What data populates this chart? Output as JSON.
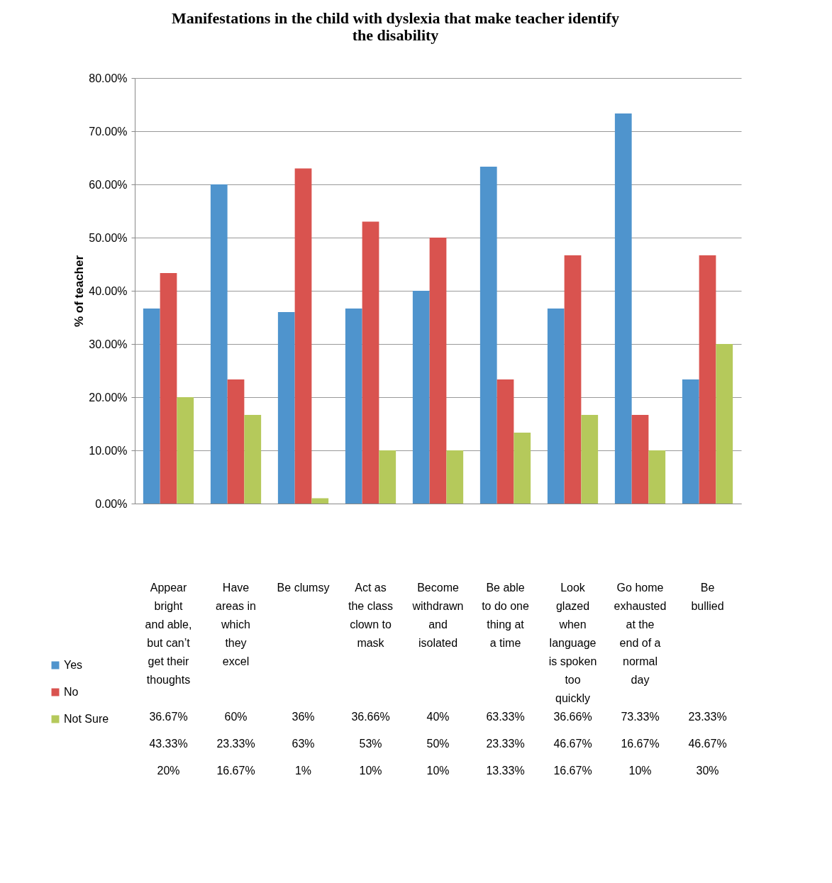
{
  "chart_data": {
    "type": "bar",
    "title": "Manifestations in the child with dyslexia that make teacher identify the disability",
    "ylabel": "% of teacher",
    "categories": [
      "Appear bright and able, but can’t get their thoughts",
      "Have areas in which they excel",
      "Be clumsy",
      "Act as the class clown to mask",
      "Become withdrawn and isolated",
      "Be able to do one thing at a time",
      "Look glazed when language is spoken too quickly",
      "Go home exhausted at the end of a normal day",
      "Be bullied"
    ],
    "series": [
      {
        "name": "Yes",
        "color": "#4f94cd",
        "values": [
          36.67,
          60,
          36,
          36.66,
          40,
          63.33,
          36.66,
          73.33,
          23.33
        ],
        "value_labels": [
          "36.67%",
          "60%",
          "36%",
          "36.66%",
          "40%",
          "63.33%",
          "36.66%",
          "73.33%",
          "23.33%"
        ]
      },
      {
        "name": "No",
        "color": "#d9534f",
        "values": [
          43.33,
          23.33,
          63,
          53,
          50,
          23.33,
          46.67,
          16.67,
          46.67
        ],
        "value_labels": [
          "43.33%",
          "23.33%",
          "63%",
          "53%",
          "50%",
          "23.33%",
          "46.67%",
          "16.67%",
          "46.67%"
        ]
      },
      {
        "name": "Not Sure",
        "color": "#b5c95b",
        "values": [
          20,
          16.67,
          1,
          10,
          10,
          13.33,
          16.67,
          10,
          30
        ],
        "value_labels": [
          "20%",
          "16.67%",
          "1%",
          "10%",
          "10%",
          "13.33%",
          "16.67%",
          "10%",
          "30%"
        ]
      }
    ],
    "ylim": [
      0,
      80
    ],
    "yticks": [
      {
        "value": 0,
        "label": "0.00%"
      },
      {
        "value": 10,
        "label": "10.00%"
      },
      {
        "value": 20,
        "label": "20.00%"
      },
      {
        "value": 30,
        "label": "30.00%"
      },
      {
        "value": 40,
        "label": "40.00%"
      },
      {
        "value": 50,
        "label": "50.00%"
      },
      {
        "value": 60,
        "label": "60.00%"
      },
      {
        "value": 70,
        "label": "70.00%"
      },
      {
        "value": 80,
        "label": "80.00%"
      }
    ],
    "grid": "y",
    "legend": "bottom left"
  }
}
